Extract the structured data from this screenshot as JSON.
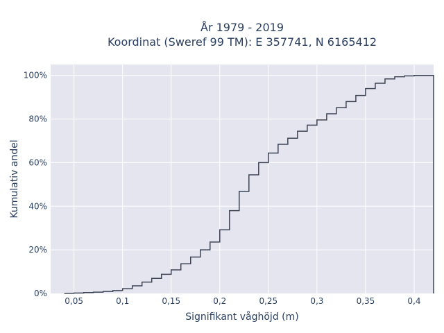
{
  "chart_data": {
    "type": "line",
    "line_shape": "step",
    "title_lines": [
      "År 1979 - 2019",
      "Koordinat (Sweref 99 TM): E 357741, N 6165412"
    ],
    "xlabel": "Signifikant våghöjd (m)",
    "ylabel": "Kumulativ andel",
    "xlim": [
      0.026,
      0.42
    ],
    "ylim": [
      0,
      1.05
    ],
    "x_ticks": [
      {
        "value": 0.05,
        "label": "0,05"
      },
      {
        "value": 0.1,
        "label": "0,1"
      },
      {
        "value": 0.15,
        "label": "0,15"
      },
      {
        "value": 0.2,
        "label": "0,2"
      },
      {
        "value": 0.25,
        "label": "0,25"
      },
      {
        "value": 0.3,
        "label": "0,3"
      },
      {
        "value": 0.35,
        "label": "0,35"
      },
      {
        "value": 0.4,
        "label": "0,4"
      }
    ],
    "y_ticks": [
      {
        "value": 0,
        "label": "0%"
      },
      {
        "value": 0.2,
        "label": "20%"
      },
      {
        "value": 0.4,
        "label": "40%"
      },
      {
        "value": 0.6,
        "label": "60%"
      },
      {
        "value": 0.8,
        "label": "80%"
      },
      {
        "value": 1.0,
        "label": "100%"
      }
    ],
    "grid": true,
    "colors": {
      "plot_bg": "#e5e5f0",
      "grid": "#ffffff",
      "line": "#3c4454",
      "text": "#2a3f5f"
    },
    "series": [
      {
        "x": [
          0.04,
          0.05,
          0.06,
          0.07,
          0.08,
          0.09,
          0.1,
          0.11,
          0.12,
          0.13,
          0.14,
          0.15,
          0.16,
          0.17,
          0.18,
          0.19,
          0.2,
          0.21,
          0.22,
          0.23,
          0.24,
          0.25,
          0.26,
          0.27,
          0.28,
          0.29,
          0.3,
          0.31,
          0.32,
          0.33,
          0.34,
          0.35,
          0.36,
          0.37,
          0.38,
          0.39,
          0.4,
          0.42
        ],
        "y": [
          0.001,
          0.002,
          0.004,
          0.006,
          0.009,
          0.013,
          0.022,
          0.035,
          0.052,
          0.069,
          0.088,
          0.108,
          0.136,
          0.167,
          0.2,
          0.236,
          0.292,
          0.38,
          0.468,
          0.544,
          0.6,
          0.644,
          0.684,
          0.712,
          0.744,
          0.772,
          0.796,
          0.824,
          0.852,
          0.88,
          0.908,
          0.94,
          0.964,
          0.984,
          0.994,
          0.998,
          1.0,
          1.0
        ]
      }
    ]
  }
}
